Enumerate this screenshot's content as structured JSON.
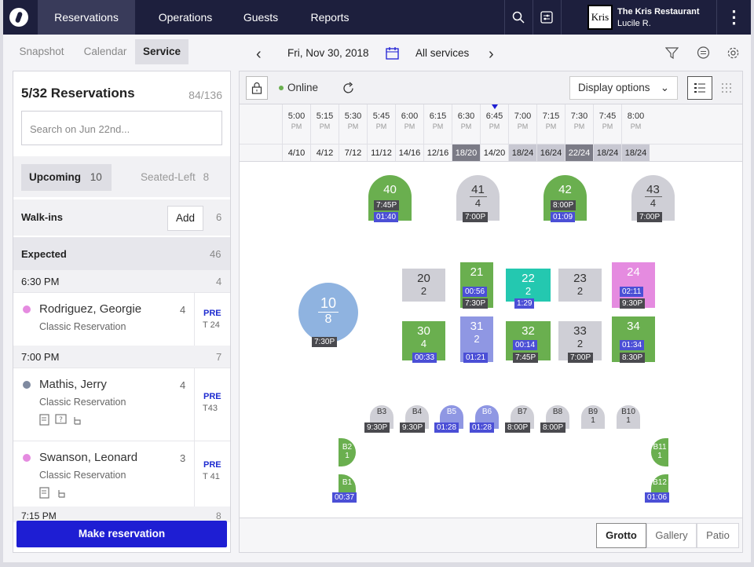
{
  "nav": {
    "items": [
      "Reservations",
      "Operations",
      "Guests",
      "Reports"
    ],
    "active": "Reservations"
  },
  "account": {
    "logo_text": "Kris",
    "restaurant": "The Kris Restaurant",
    "user": "Lucile R."
  },
  "subnav": {
    "tabs": [
      "Snapshot",
      "Calendar",
      "Service"
    ],
    "date": "Fri, Nov 30, 2018",
    "services": "All services"
  },
  "left": {
    "title": "5/32 Reservations",
    "count": "84/136",
    "search_placeholder": "Search on Jun 22nd...",
    "filters": {
      "upcoming": "Upcoming",
      "upcoming_count": "10",
      "seated": "Seated-Left",
      "seated_count": "8"
    },
    "walkins": {
      "label": "Walk-ins",
      "add": "Add",
      "count": "6"
    },
    "expected": {
      "label": "Expected",
      "count": "46"
    },
    "groups": [
      {
        "time": "6:30 PM",
        "count": "4"
      },
      {
        "time": "7:00 PM",
        "count": "7"
      },
      {
        "time": "7:15 PM",
        "count": "8"
      }
    ],
    "entries": [
      {
        "name": "Rodriguez, Georgie",
        "type": "Classic Reservation",
        "party": "4",
        "pre": "PRE",
        "table": "T 24",
        "dot": "#e58be0"
      },
      {
        "name": "Mathis, Jerry",
        "type": "Classic Reservation",
        "party": "4",
        "pre": "PRE",
        "table": "T43",
        "dot": "#7f8aa0"
      },
      {
        "name": "Swanson, Leonard",
        "type": "Classic Reservation",
        "party": "3",
        "pre": "PRE",
        "table": "T 41",
        "dot": "#e58be0"
      }
    ],
    "make_reservation": "Make reservation"
  },
  "right": {
    "lock": "lock-icon",
    "online": "Online",
    "display_options": "Display options",
    "times": [
      [
        "5:00",
        "PM"
      ],
      [
        "5:15",
        "PM"
      ],
      [
        "5:30",
        "PM"
      ],
      [
        "5:45",
        "PM"
      ],
      [
        "6:00",
        "PM"
      ],
      [
        "6:15",
        "PM"
      ],
      [
        "6:30",
        "PM"
      ],
      [
        "6:45",
        "PM"
      ],
      [
        "7:00",
        "PM"
      ],
      [
        "7:15",
        "PM"
      ],
      [
        "7:30",
        "PM"
      ],
      [
        "7:45",
        "PM"
      ],
      [
        "8:00",
        "PM"
      ]
    ],
    "covers": [
      "4/10",
      "4/12",
      "7/12",
      "11/12",
      "14/16",
      "12/16",
      "18/20",
      "14/20",
      "18/24",
      "16/24",
      "22/24",
      "18/24",
      "18/24"
    ],
    "rooms": [
      "Grotto",
      "Gallery",
      "Patio"
    ]
  },
  "tables": {
    "t40": {
      "num": "40",
      "tag1": "7:45P",
      "tag2": "01:40"
    },
    "t41": {
      "num": "41",
      "cov": "4",
      "tag1": "7:00P"
    },
    "t42": {
      "num": "42",
      "tag1": "8:00P",
      "tag2": "01:09"
    },
    "t43": {
      "num": "43",
      "cov": "4",
      "tag1": "7:00P"
    },
    "t10": {
      "num": "10",
      "cov": "8",
      "tag1": "7:30P"
    },
    "t20": {
      "num": "20",
      "cov": "2"
    },
    "t21": {
      "num": "21",
      "tag1": "00:56",
      "tag2": "7:30P"
    },
    "t22": {
      "num": "22",
      "cov": "2",
      "tag1": "1:29"
    },
    "t23": {
      "num": "23",
      "cov": "2"
    },
    "t24": {
      "num": "24",
      "tag1": "02:11",
      "tag2": "9:30P"
    },
    "t30": {
      "num": "30",
      "cov": "4",
      "tag1": "00:33"
    },
    "t31": {
      "num": "31",
      "cov": "2",
      "tag1": "01:21"
    },
    "t32": {
      "num": "32",
      "tag1": "00:14",
      "tag2": "7:45P"
    },
    "t33": {
      "num": "33",
      "cov": "2",
      "tag1": "7:00P"
    },
    "t34": {
      "num": "34",
      "tag1": "01:34",
      "tag2": "8:30P"
    },
    "b3": {
      "num": "B3",
      "tag1": "9:30P"
    },
    "b4": {
      "num": "B4",
      "tag1": "9:30P"
    },
    "b5": {
      "num": "B5",
      "tag1": "01:28"
    },
    "b6": {
      "num": "B6",
      "tag1": "01:28"
    },
    "b7": {
      "num": "B7",
      "tag1": "8:00P"
    },
    "b8": {
      "num": "B8",
      "tag1": "8:00P"
    },
    "b9": {
      "num": "B9",
      "cov": "1"
    },
    "b10": {
      "num": "B10",
      "cov": "1"
    },
    "b2": {
      "num": "B2",
      "cov": "1"
    },
    "b1": {
      "num": "B1",
      "tag1": "00:37"
    },
    "b11": {
      "num": "B11",
      "cov": "1"
    },
    "b12": {
      "num": "B12",
      "tag1": "01:06"
    }
  },
  "colors": {
    "green": "#6aaf4f",
    "gray": "#cfcfd6",
    "teal": "#24c8b0",
    "pink": "#e58be0",
    "periwinkle": "#8f97e3",
    "blue": "#8fb3e0",
    "navy": "#1d1f3d",
    "accent": "#1e1ed3"
  }
}
